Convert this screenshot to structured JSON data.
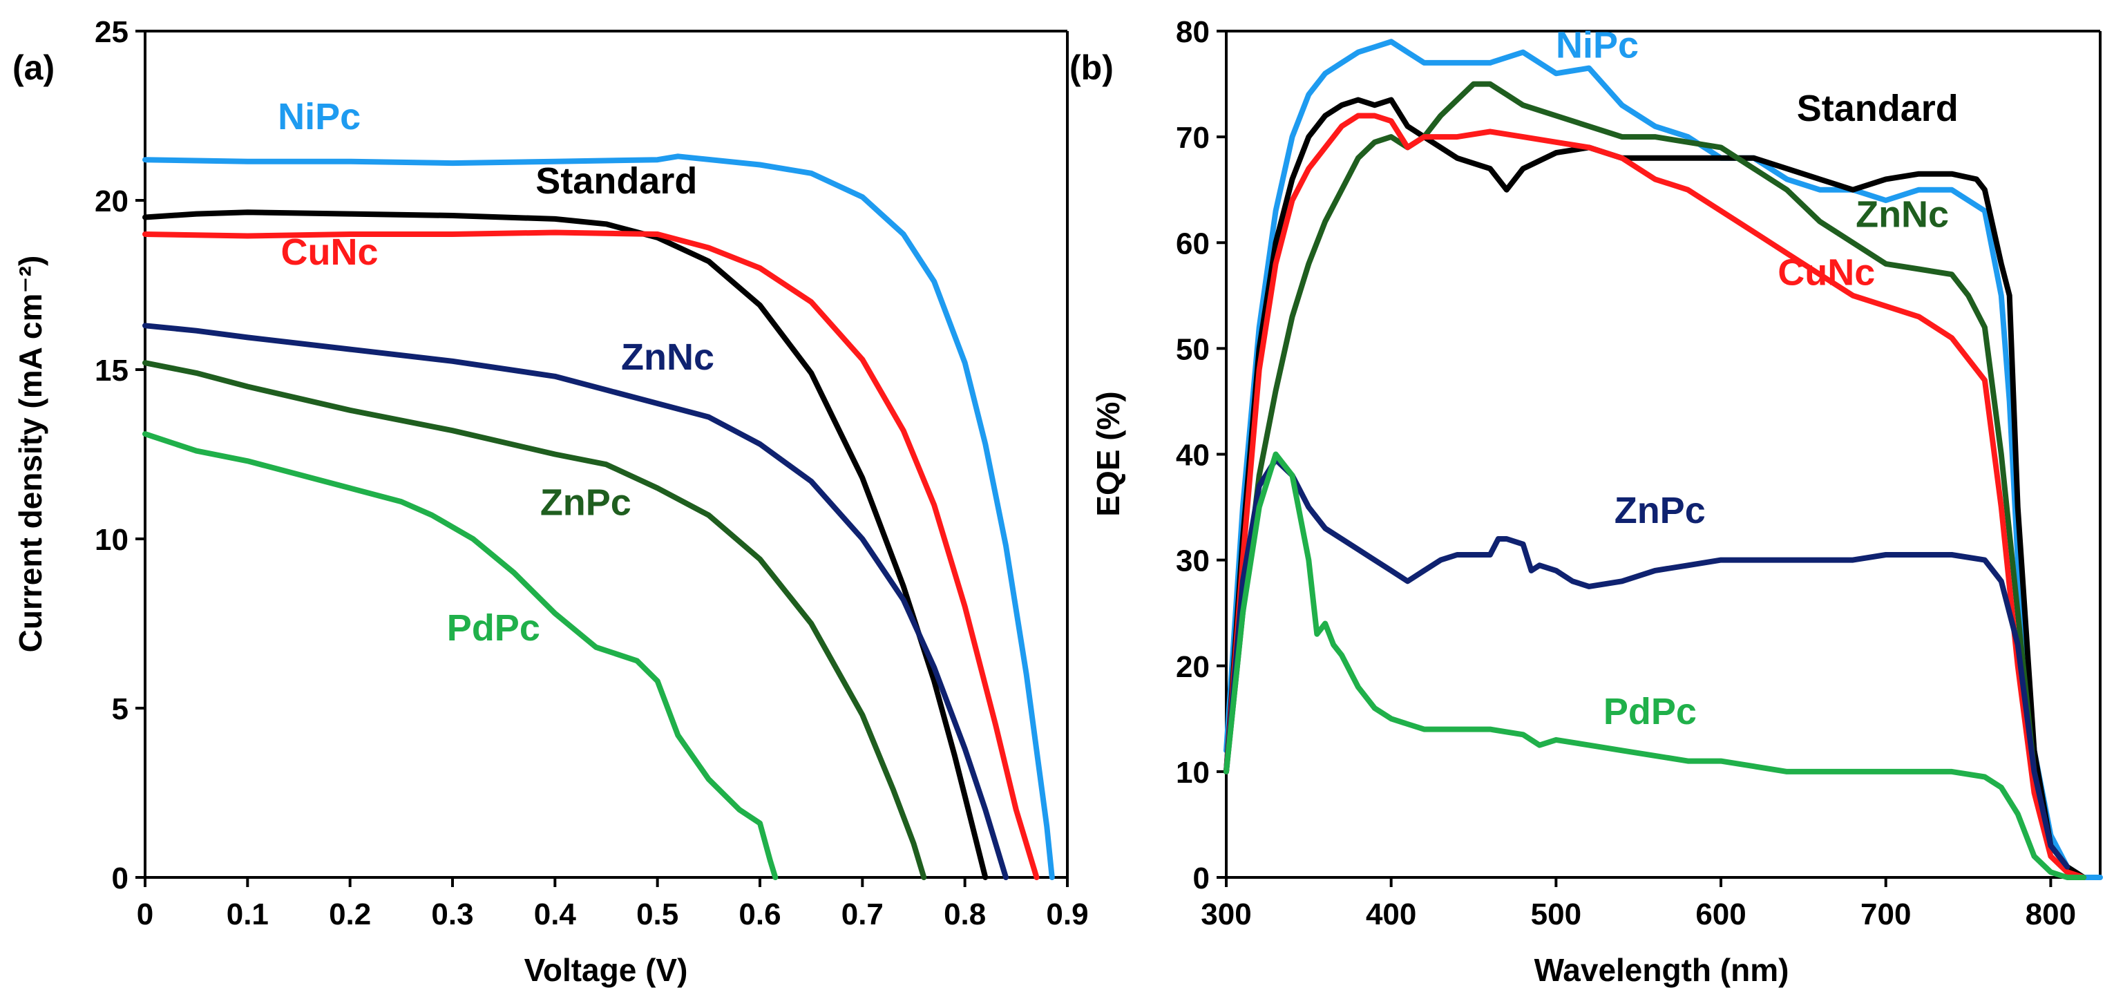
{
  "chart_data": [
    {
      "type": "line",
      "panel_label": "(a)",
      "xlabel": "Voltage (V)",
      "ylabel": "Current density (mA cm⁻²)",
      "xlim": [
        0,
        0.9
      ],
      "ylim": [
        0,
        25
      ],
      "x_ticks": [
        0,
        0.1,
        0.2,
        0.3,
        0.4,
        0.5,
        0.6,
        0.7,
        0.8,
        0.9
      ],
      "x_tick_labels": [
        "0",
        "0.1",
        "0.2",
        "0.3",
        "0.4",
        "0.5",
        "0.6",
        "0.7",
        "0.8",
        "0.9"
      ],
      "y_ticks": [
        0,
        5,
        10,
        15,
        20,
        25
      ],
      "y_tick_labels": [
        "0",
        "5",
        "10",
        "15",
        "20",
        "25"
      ],
      "grid": false,
      "series": [
        {
          "name": "NiPc",
          "color": "#1E9BF0",
          "label_at": [
            0.17,
            22.1
          ],
          "x": [
            0,
            0.1,
            0.2,
            0.3,
            0.4,
            0.5,
            0.52,
            0.6,
            0.65,
            0.7,
            0.74,
            0.77,
            0.8,
            0.82,
            0.84,
            0.86,
            0.88,
            0.885
          ],
          "y": [
            21.2,
            21.15,
            21.15,
            21.1,
            21.15,
            21.2,
            21.3,
            21.05,
            20.8,
            20.1,
            19.0,
            17.6,
            15.2,
            12.8,
            9.8,
            6.0,
            1.5,
            0
          ]
        },
        {
          "name": "Standard",
          "color": "#000000",
          "label_at": [
            0.46,
            20.2
          ],
          "x": [
            0,
            0.05,
            0.1,
            0.2,
            0.3,
            0.4,
            0.45,
            0.5,
            0.55,
            0.6,
            0.65,
            0.7,
            0.74,
            0.77,
            0.79,
            0.8,
            0.81,
            0.82
          ],
          "y": [
            19.5,
            19.6,
            19.65,
            19.6,
            19.55,
            19.45,
            19.3,
            18.9,
            18.2,
            16.9,
            14.9,
            11.8,
            8.6,
            5.8,
            3.6,
            2.4,
            1.2,
            0
          ]
        },
        {
          "name": "CuNc",
          "color": "#FF1A1A",
          "label_at": [
            0.18,
            18.1
          ],
          "x": [
            0,
            0.1,
            0.2,
            0.3,
            0.4,
            0.5,
            0.55,
            0.6,
            0.65,
            0.7,
            0.74,
            0.77,
            0.8,
            0.83,
            0.85,
            0.87
          ],
          "y": [
            19.0,
            18.95,
            19.0,
            19.0,
            19.05,
            19.0,
            18.6,
            18.0,
            17.0,
            15.3,
            13.2,
            11.0,
            8.0,
            4.5,
            2.0,
            0
          ]
        },
        {
          "name": "ZnNc",
          "color": "#0F2270",
          "label_at": [
            0.51,
            15.0
          ],
          "x": [
            0,
            0.05,
            0.1,
            0.2,
            0.3,
            0.4,
            0.45,
            0.5,
            0.55,
            0.6,
            0.65,
            0.7,
            0.74,
            0.77,
            0.8,
            0.82,
            0.84
          ],
          "y": [
            16.3,
            16.15,
            15.95,
            15.6,
            15.25,
            14.8,
            14.4,
            14.0,
            13.6,
            12.8,
            11.7,
            10.0,
            8.2,
            6.2,
            3.8,
            2.0,
            0
          ]
        },
        {
          "name": "ZnPc",
          "color": "#1F5E1F",
          "label_at": [
            0.43,
            10.7
          ],
          "x": [
            0,
            0.05,
            0.1,
            0.2,
            0.3,
            0.4,
            0.45,
            0.5,
            0.55,
            0.6,
            0.65,
            0.7,
            0.73,
            0.75,
            0.76
          ],
          "y": [
            15.2,
            14.9,
            14.5,
            13.8,
            13.2,
            12.5,
            12.2,
            11.5,
            10.7,
            9.4,
            7.5,
            4.8,
            2.6,
            1.0,
            0
          ]
        },
        {
          "name": "PdPc",
          "color": "#20B04A",
          "label_at": [
            0.34,
            7.0
          ],
          "x": [
            0,
            0.05,
            0.1,
            0.15,
            0.2,
            0.25,
            0.28,
            0.32,
            0.36,
            0.4,
            0.44,
            0.48,
            0.5,
            0.52,
            0.55,
            0.58,
            0.6,
            0.61,
            0.615
          ],
          "y": [
            13.1,
            12.6,
            12.3,
            11.9,
            11.5,
            11.1,
            10.7,
            10.0,
            9.0,
            7.8,
            6.8,
            6.4,
            5.8,
            4.2,
            2.9,
            2.0,
            1.6,
            0.5,
            0
          ]
        }
      ]
    },
    {
      "type": "line",
      "panel_label": "(b)",
      "xlabel": "Wavelength (nm)",
      "ylabel": "EQE (%)",
      "xlim": [
        300,
        830
      ],
      "ylim": [
        0,
        80
      ],
      "x_ticks": [
        300,
        400,
        500,
        600,
        700,
        800
      ],
      "x_tick_labels": [
        "300",
        "400",
        "500",
        "600",
        "700",
        "800"
      ],
      "y_ticks": [
        0,
        10,
        20,
        30,
        40,
        50,
        60,
        70,
        80
      ],
      "y_tick_labels": [
        "0",
        "10",
        "20",
        "30",
        "40",
        "50",
        "60",
        "70",
        "80"
      ],
      "grid": false,
      "series": [
        {
          "name": "NiPc",
          "color": "#1E9BF0",
          "label_at": [
            525,
            77.5
          ],
          "x": [
            300,
            310,
            320,
            330,
            340,
            350,
            360,
            370,
            380,
            390,
            400,
            410,
            420,
            440,
            460,
            480,
            500,
            520,
            540,
            560,
            580,
            600,
            620,
            640,
            660,
            680,
            700,
            720,
            740,
            760,
            770,
            775,
            780,
            790,
            800,
            810,
            820,
            830
          ],
          "y": [
            12,
            35,
            52,
            63,
            70,
            74,
            76,
            77,
            78,
            78.5,
            79,
            78,
            77,
            77,
            77,
            78,
            76,
            76.5,
            73,
            71,
            70,
            68,
            68,
            66,
            65,
            65,
            64,
            65,
            65,
            63,
            55,
            45,
            30,
            12,
            4,
            1,
            0,
            0
          ]
        },
        {
          "name": "Standard",
          "color": "#000000",
          "label_at": [
            695,
            71.5
          ],
          "x": [
            300,
            310,
            320,
            330,
            340,
            350,
            360,
            370,
            380,
            390,
            400,
            410,
            420,
            440,
            460,
            470,
            480,
            500,
            520,
            540,
            560,
            580,
            600,
            620,
            640,
            660,
            680,
            700,
            720,
            740,
            755,
            760,
            770,
            775,
            780,
            790,
            800,
            810,
            820
          ],
          "y": [
            10,
            32,
            50,
            60,
            66,
            70,
            72,
            73,
            73.5,
            73,
            73.5,
            71,
            70,
            68,
            67,
            65,
            67,
            68.5,
            69,
            68,
            68,
            68,
            68,
            68,
            67,
            66,
            65,
            66,
            66.5,
            66.5,
            66,
            65,
            58,
            55,
            35,
            12,
            3,
            1,
            0
          ]
        },
        {
          "name": "ZnNc",
          "color": "#1F5E1F",
          "label_at": [
            710,
            61.5
          ],
          "x": [
            300,
            310,
            320,
            330,
            340,
            350,
            360,
            370,
            380,
            390,
            400,
            410,
            420,
            430,
            440,
            450,
            460,
            470,
            480,
            500,
            520,
            540,
            560,
            580,
            600,
            620,
            640,
            660,
            680,
            700,
            720,
            740,
            750,
            760,
            770,
            780,
            790,
            800,
            810
          ],
          "y": [
            10,
            25,
            38,
            46,
            53,
            58,
            62,
            65,
            68,
            69.5,
            70,
            69,
            70,
            72,
            73.5,
            75,
            75,
            74,
            73,
            72,
            71,
            70,
            70,
            69.5,
            69,
            67,
            65,
            62,
            60,
            58,
            57.5,
            57,
            55,
            52,
            40,
            25,
            10,
            3,
            1
          ]
        },
        {
          "name": "CuNc",
          "color": "#FF1A1A",
          "label_at": [
            664,
            56.0
          ],
          "x": [
            300,
            310,
            320,
            330,
            340,
            350,
            360,
            370,
            380,
            390,
            400,
            410,
            420,
            440,
            460,
            480,
            500,
            520,
            540,
            560,
            580,
            600,
            620,
            640,
            660,
            680,
            700,
            720,
            740,
            760,
            770,
            780,
            790,
            800,
            810,
            820
          ],
          "y": [
            10,
            30,
            48,
            58,
            64,
            67,
            69,
            71,
            72,
            72,
            71.5,
            69,
            70,
            70,
            70.5,
            70,
            69.5,
            69,
            68,
            66,
            65,
            63,
            61,
            59,
            57,
            55,
            54,
            53,
            51,
            47,
            35,
            20,
            8,
            2,
            0.5,
            0
          ]
        },
        {
          "name": "ZnPc",
          "color": "#0F2270",
          "label_at": [
            563,
            33.5
          ],
          "x": [
            300,
            310,
            320,
            330,
            340,
            350,
            360,
            370,
            380,
            390,
            400,
            410,
            420,
            430,
            440,
            460,
            465,
            470,
            480,
            485,
            490,
            500,
            510,
            520,
            540,
            560,
            580,
            600,
            620,
            640,
            660,
            680,
            700,
            720,
            740,
            760,
            770,
            780,
            790,
            800,
            810
          ],
          "y": [
            10,
            28,
            37,
            39.5,
            38,
            35,
            33,
            32,
            31,
            30,
            29,
            28,
            29,
            30,
            30.5,
            30.5,
            32,
            32,
            31.5,
            29,
            29.5,
            29,
            28,
            27.5,
            28,
            29,
            29.5,
            30,
            30,
            30,
            30,
            30,
            30.5,
            30.5,
            30.5,
            30,
            28,
            22,
            10,
            3,
            1
          ]
        },
        {
          "name": "PdPc",
          "color": "#20B04A",
          "label_at": [
            557,
            14.5
          ],
          "x": [
            300,
            310,
            320,
            330,
            340,
            350,
            355,
            360,
            365,
            370,
            380,
            390,
            400,
            410,
            420,
            440,
            460,
            480,
            490,
            500,
            520,
            540,
            560,
            580,
            600,
            620,
            640,
            660,
            680,
            700,
            720,
            740,
            760,
            770,
            780,
            790,
            800,
            810,
            820
          ],
          "y": [
            10,
            25,
            35,
            40,
            38,
            30,
            23,
            24,
            22,
            21,
            18,
            16,
            15,
            14.5,
            14,
            14,
            14,
            13.5,
            12.5,
            13,
            12.5,
            12,
            11.5,
            11,
            11,
            10.5,
            10,
            10,
            10,
            10,
            10,
            10,
            9.5,
            8.5,
            6,
            2,
            0.5,
            0,
            0
          ]
        }
      ]
    }
  ]
}
